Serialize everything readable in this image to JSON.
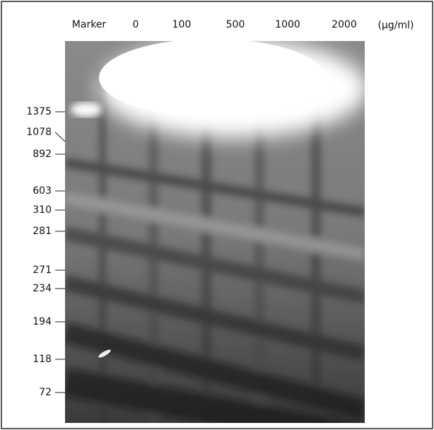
{
  "lanes": [
    "Marker",
    "0",
    "100",
    "500",
    "1000",
    "2000"
  ],
  "unit": "(μg/ml)",
  "markers": [
    "1375",
    "1078",
    "892",
    "603",
    "310",
    "281",
    "271",
    "234",
    "194",
    "118",
    "72"
  ]
}
